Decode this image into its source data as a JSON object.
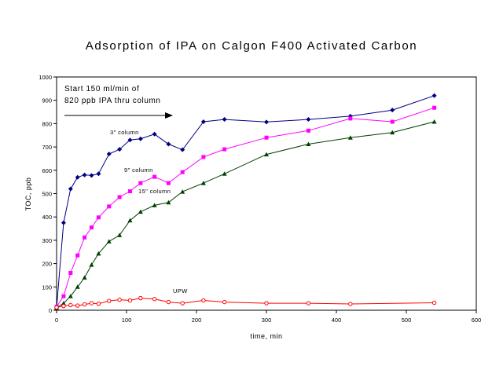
{
  "chart_data": {
    "type": "line",
    "title": "Adsorption of IPA on Calgon F400 Activated Carbon",
    "xlabel": "time, min",
    "ylabel": "TOC, ppb",
    "xlim": [
      0,
      600
    ],
    "ylim": [
      0,
      1000
    ],
    "x_ticks": [
      0,
      100,
      200,
      300,
      400,
      500,
      600
    ],
    "y_ticks": [
      0,
      100,
      200,
      300,
      400,
      500,
      600,
      700,
      800,
      900,
      1000
    ],
    "grid": false,
    "legend": "none",
    "annotation_lines": [
      "Start 150 ml/min of",
      "820 ppb IPA thru column"
    ],
    "series": [
      {
        "name": "3\" column",
        "color": "#000080",
        "marker": "diamond",
        "x": [
          0,
          10,
          20,
          30,
          40,
          50,
          60,
          75,
          90,
          105,
          120,
          140,
          160,
          180,
          210,
          240,
          300,
          360,
          420,
          480,
          540
        ],
        "y": [
          10,
          375,
          520,
          570,
          580,
          578,
          585,
          670,
          690,
          730,
          735,
          755,
          712,
          688,
          808,
          818,
          807,
          818,
          832,
          858,
          920
        ]
      },
      {
        "name": "9\" column",
        "color": "#ff00ff",
        "marker": "square",
        "x": [
          0,
          10,
          20,
          30,
          40,
          50,
          60,
          75,
          90,
          105,
          120,
          140,
          160,
          180,
          210,
          240,
          300,
          360,
          420,
          480,
          540
        ],
        "y": [
          15,
          60,
          160,
          235,
          312,
          355,
          398,
          445,
          485,
          510,
          545,
          572,
          545,
          592,
          657,
          690,
          740,
          770,
          822,
          808,
          868
        ]
      },
      {
        "name": "15\" column",
        "color": "#004000",
        "marker": "triangle",
        "x": [
          0,
          10,
          20,
          30,
          40,
          50,
          60,
          75,
          90,
          105,
          120,
          140,
          160,
          180,
          210,
          240,
          300,
          360,
          420,
          480,
          540
        ],
        "y": [
          10,
          30,
          60,
          100,
          140,
          195,
          243,
          295,
          322,
          385,
          422,
          450,
          462,
          508,
          545,
          585,
          668,
          712,
          740,
          762,
          808
        ]
      },
      {
        "name": "UPW",
        "color": "#ff0000",
        "marker": "circle",
        "x": [
          0,
          10,
          20,
          30,
          40,
          50,
          60,
          75,
          90,
          105,
          120,
          140,
          160,
          180,
          210,
          240,
          300,
          360,
          420,
          540
        ],
        "y": [
          12,
          18,
          22,
          20,
          25,
          30,
          28,
          40,
          45,
          42,
          52,
          48,
          35,
          30,
          42,
          35,
          30,
          30,
          27,
          32
        ]
      }
    ]
  }
}
